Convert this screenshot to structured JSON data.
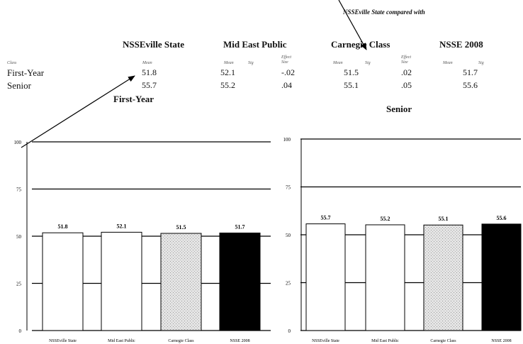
{
  "note": "NSSEville State compared with",
  "table": {
    "groups": [
      "NSSEville State",
      "Mid East Public",
      "Carnegie Class",
      "NSSE 2008"
    ],
    "class_header": "Class",
    "sub_headers": [
      "Mean",
      "Mean",
      "Sig",
      "Effect Size",
      "Mean",
      "Sig",
      "Effect Size",
      "Mean",
      "Sig"
    ],
    "rows": [
      {
        "label": "First-Year",
        "vals": [
          "51.8",
          "52.1",
          "-.02",
          "51.5",
          ".02",
          "51.7"
        ]
      },
      {
        "label": "Senior",
        "vals": [
          "55.7",
          "55.2",
          ".04",
          "55.1",
          ".05",
          "55.6"
        ]
      }
    ]
  },
  "chart_data": [
    {
      "type": "bar",
      "title": "First-Year",
      "categories": [
        "NSSEville State",
        "Mid East Public",
        "Carnegie Class",
        "NSSE 2008"
      ],
      "values": [
        51.8,
        52.1,
        51.5,
        51.7
      ],
      "value_labels": [
        "51.8",
        "52.1",
        "51.5",
        "51.7"
      ],
      "ylim": [
        0,
        100
      ],
      "yticks": [
        "0",
        "25",
        "50",
        "75",
        "100"
      ],
      "bar_styles": [
        "white",
        "white",
        "stipple",
        "black"
      ]
    },
    {
      "type": "bar",
      "title": "Senior",
      "categories": [
        "NSSEville State",
        "Mid East Public",
        "Carnegie Class",
        "NSSE 2008"
      ],
      "values": [
        55.7,
        55.2,
        55.1,
        55.6
      ],
      "value_labels": [
        "55.7",
        "55.2",
        "55.1",
        "55.6"
      ],
      "ylim": [
        0,
        100
      ],
      "yticks": [
        "0",
        "25",
        "50",
        "75",
        "100"
      ],
      "bar_styles": [
        "white",
        "white",
        "stipple",
        "black"
      ]
    }
  ]
}
